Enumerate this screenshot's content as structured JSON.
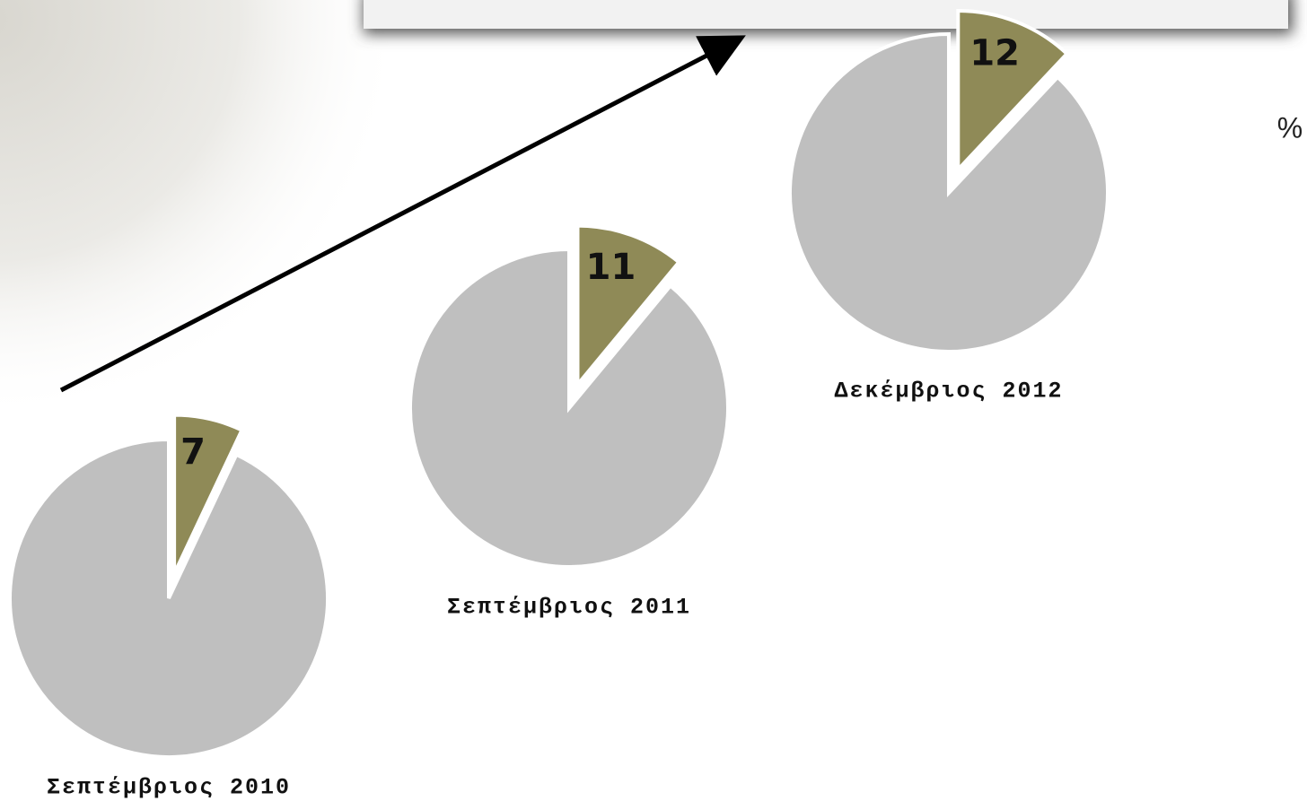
{
  "unit": "%",
  "chart_data": [
    {
      "type": "pie",
      "title": "Σεπτέμβριος 2010",
      "values": [
        7,
        93
      ],
      "colors": [
        "#8f8a57",
        "#bfbfbf"
      ]
    },
    {
      "type": "pie",
      "title": "Σεπτέμβριος 2011",
      "values": [
        11,
        89
      ],
      "colors": [
        "#8f8a57",
        "#bfbfbf"
      ]
    },
    {
      "type": "pie",
      "title": "Δεκέμβριος 2012",
      "values": [
        12,
        88
      ],
      "colors": [
        "#8f8a57",
        "#bfbfbf"
      ]
    }
  ]
}
